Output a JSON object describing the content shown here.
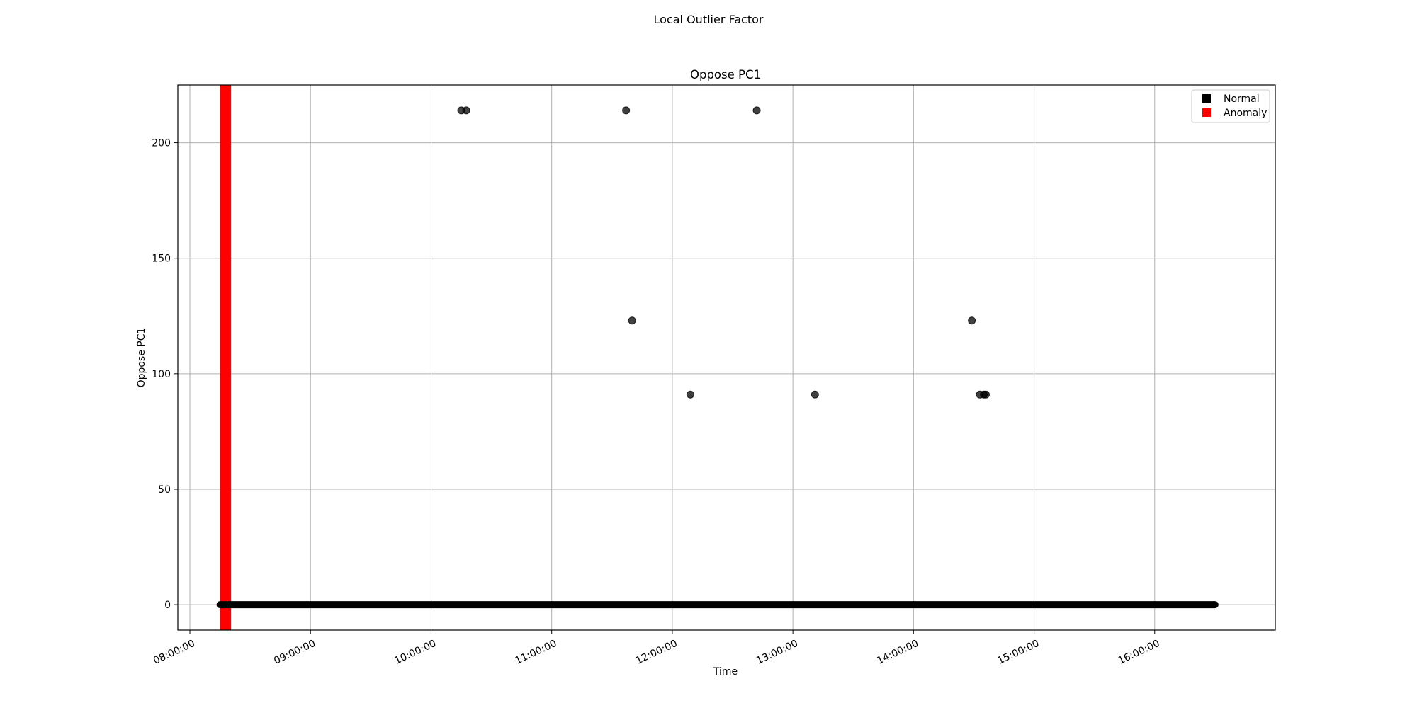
{
  "figure": {
    "suptitle": "Local Outlier Factor"
  },
  "chart_data": {
    "type": "scatter",
    "title": "Oppose PC1",
    "xlabel": "Time",
    "ylabel": "Oppose PC1",
    "xlim": [
      "07:54:00",
      "17:00:00"
    ],
    "ylim": [
      -11,
      225
    ],
    "xticks": [
      "08:00:00",
      "09:00:00",
      "10:00:00",
      "11:00:00",
      "12:00:00",
      "13:00:00",
      "14:00:00",
      "15:00:00",
      "16:00:00"
    ],
    "yticks": [
      0,
      50,
      100,
      150,
      200
    ],
    "grid": true,
    "legend": {
      "placement": "top-right",
      "entries": [
        {
          "label": "Normal",
          "color": "#000000"
        },
        {
          "label": "Anomaly",
          "color": "#ff0000"
        }
      ]
    },
    "series": [
      {
        "name": "Normal",
        "color": "#000000",
        "baseline": {
          "y": 0,
          "x_start": "08:15:00",
          "x_end": "16:30:00"
        },
        "points": [
          {
            "x": "10:15:00",
            "y": 214
          },
          {
            "x": "10:17:30",
            "y": 214
          },
          {
            "x": "11:37:00",
            "y": 214
          },
          {
            "x": "12:42:00",
            "y": 214
          },
          {
            "x": "11:40:00",
            "y": 123
          },
          {
            "x": "14:29:00",
            "y": 123
          },
          {
            "x": "12:09:00",
            "y": 91
          },
          {
            "x": "13:11:00",
            "y": 91
          },
          {
            "x": "14:33:00",
            "y": 91
          },
          {
            "x": "14:35:00",
            "y": 91
          },
          {
            "x": "14:36:00",
            "y": 91
          }
        ]
      },
      {
        "name": "Anomaly",
        "color": "#ff0000",
        "span": {
          "x_start": "08:15:00",
          "x_end": "08:20:30"
        }
      }
    ]
  }
}
